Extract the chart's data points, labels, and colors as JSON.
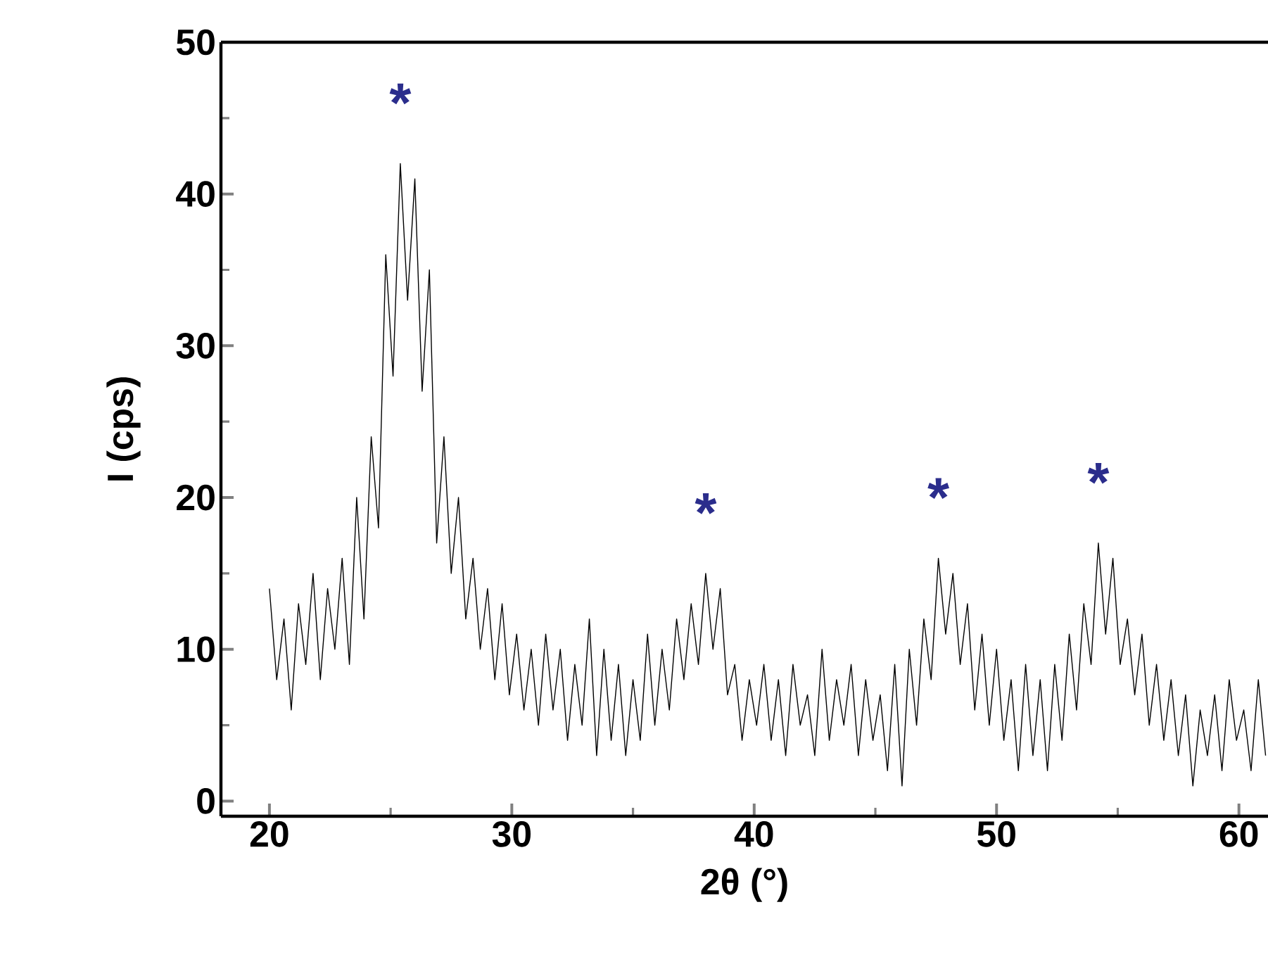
{
  "chart_data": {
    "type": "line",
    "xlabel": "2θ (°)",
    "ylabel": "I (cps)",
    "xlim": [
      18,
      61.2
    ],
    "xticks": [
      20,
      30,
      40,
      50,
      60
    ],
    "ylim": [
      -1,
      50
    ],
    "yticks": [
      0,
      10,
      20,
      30,
      40,
      50
    ],
    "grid": false,
    "marker": "none",
    "line_style": "solid",
    "annotations": [
      {
        "text": "*",
        "x": 25.4,
        "y": 42
      },
      {
        "text": "*",
        "x": 38.0,
        "y": 15
      },
      {
        "text": "*",
        "x": 47.6,
        "y": 16
      },
      {
        "text": "*",
        "x": 54.2,
        "y": 17
      }
    ],
    "series": [
      {
        "color": "#000000",
        "x": [
          20.0,
          20.3,
          20.6,
          20.9,
          21.2,
          21.5,
          21.8,
          22.1,
          22.4,
          22.7,
          23.0,
          23.3,
          23.6,
          23.9,
          24.2,
          24.5,
          24.8,
          25.1,
          25.4,
          25.7,
          26.0,
          26.3,
          26.6,
          26.9,
          27.2,
          27.5,
          27.8,
          28.1,
          28.4,
          28.7,
          29.0,
          29.3,
          29.6,
          29.9,
          30.2,
          30.5,
          30.8,
          31.1,
          31.4,
          31.7,
          32.0,
          32.3,
          32.6,
          32.9,
          33.2,
          33.5,
          33.8,
          34.1,
          34.4,
          34.7,
          35.0,
          35.3,
          35.6,
          35.9,
          36.2,
          36.5,
          36.8,
          37.1,
          37.4,
          37.7,
          38.0,
          38.3,
          38.6,
          38.9,
          39.2,
          39.5,
          39.8,
          40.1,
          40.4,
          40.7,
          41.0,
          41.3,
          41.6,
          41.9,
          42.2,
          42.5,
          42.8,
          43.1,
          43.4,
          43.7,
          44.0,
          44.3,
          44.6,
          44.9,
          45.2,
          45.5,
          45.8,
          46.1,
          46.4,
          46.7,
          47.0,
          47.3,
          47.6,
          47.9,
          48.2,
          48.5,
          48.8,
          49.1,
          49.4,
          49.7,
          50.0,
          50.3,
          50.6,
          50.9,
          51.2,
          51.5,
          51.8,
          52.1,
          52.4,
          52.7,
          53.0,
          53.3,
          53.6,
          53.9,
          54.2,
          54.5,
          54.8,
          55.1,
          55.4,
          55.7,
          56.0,
          56.3,
          56.6,
          56.9,
          57.2,
          57.5,
          57.8,
          58.1,
          58.4,
          58.7,
          59.0,
          59.3,
          59.6,
          59.9,
          60.2,
          60.5,
          60.8,
          61.1
        ],
        "values": [
          14,
          8,
          12,
          6,
          13,
          9,
          15,
          8,
          14,
          10,
          16,
          9,
          20,
          12,
          24,
          18,
          36,
          28,
          42,
          33,
          41,
          27,
          35,
          17,
          24,
          15,
          20,
          12,
          16,
          10,
          14,
          8,
          13,
          7,
          11,
          6,
          10,
          5,
          11,
          6,
          10,
          4,
          9,
          5,
          12,
          3,
          10,
          4,
          9,
          3,
          8,
          4,
          11,
          5,
          10,
          6,
          12,
          8,
          13,
          9,
          15,
          10,
          14,
          7,
          9,
          4,
          8,
          5,
          9,
          4,
          8,
          3,
          9,
          5,
          7,
          3,
          10,
          4,
          8,
          5,
          9,
          3,
          8,
          4,
          7,
          2,
          9,
          1,
          10,
          5,
          12,
          8,
          16,
          11,
          15,
          9,
          13,
          6,
          11,
          5,
          10,
          4,
          8,
          2,
          9,
          3,
          8,
          2,
          9,
          4,
          11,
          6,
          13,
          9,
          17,
          11,
          16,
          9,
          12,
          7,
          11,
          5,
          9,
          4,
          8,
          3,
          7,
          1,
          6,
          3,
          7,
          2,
          8,
          4,
          6,
          2,
          8,
          3
        ]
      }
    ]
  }
}
